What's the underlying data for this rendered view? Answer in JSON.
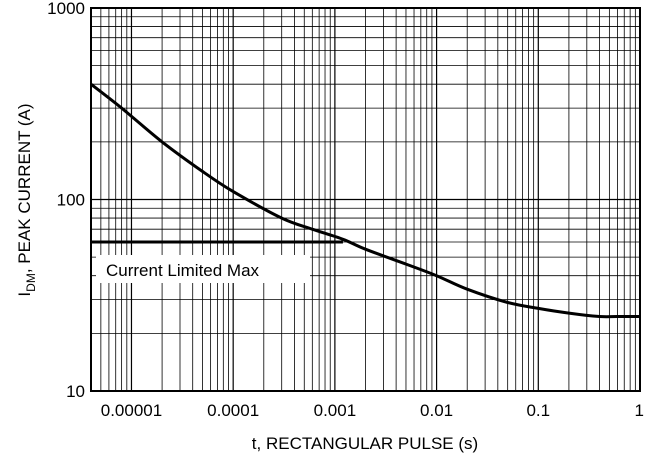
{
  "chart_data": {
    "type": "line",
    "xscale": "log",
    "yscale": "log",
    "xlim": [
      4e-06,
      1
    ],
    "ylim": [
      10,
      1000
    ],
    "grid": true,
    "xlabel": "t, RECTANGULAR PULSE (s)",
    "ylabel_main": "I",
    "ylabel_sub": "DM",
    "ylabel_rest": ", PEAK CURRENT (A)",
    "x_ticks": [
      {
        "value": 1e-05,
        "label": "0.00001"
      },
      {
        "value": 0.0001,
        "label": "0.0001"
      },
      {
        "value": 0.001,
        "label": "0.001"
      },
      {
        "value": 0.01,
        "label": "0.01"
      },
      {
        "value": 0.1,
        "label": "0.1"
      },
      {
        "value": 1,
        "label": "1"
      }
    ],
    "y_ticks": [
      {
        "value": 10,
        "label": "10"
      },
      {
        "value": 100,
        "label": "100"
      },
      {
        "value": 1000,
        "label": "1000"
      }
    ],
    "series": [
      {
        "x": [
          4e-06,
          8e-06,
          2e-05,
          5e-05,
          0.0001,
          0.0003,
          0.0006,
          0.0012,
          0.002,
          0.005,
          0.01,
          0.02,
          0.05,
          0.1,
          0.2,
          0.4,
          0.6,
          1
        ],
        "y": [
          400,
          300,
          200,
          140,
          110,
          80,
          70,
          62,
          55,
          46,
          40,
          34,
          29,
          27,
          25.5,
          24.5,
          24.5,
          24.5
        ]
      }
    ],
    "reference_line": {
      "y": 60,
      "x_range": [
        4e-06,
        0.0012
      ]
    },
    "annotation": {
      "text": "Current Limited Max"
    }
  }
}
